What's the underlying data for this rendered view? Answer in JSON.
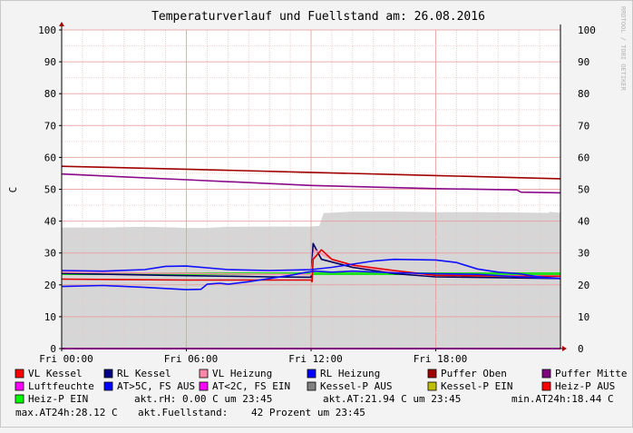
{
  "chart_data": {
    "type": "line",
    "title": "Temperaturverlauf und Fuellstand am: 26.08.2016",
    "ylabel": "C",
    "watermark": "RRDTOOL / TOBI OETIKER",
    "xlim": [
      0,
      24
    ],
    "ylim": [
      0,
      100
    ],
    "y_ticks": [
      0,
      10,
      20,
      30,
      40,
      50,
      60,
      70,
      80,
      90,
      100
    ],
    "x_ticks": [
      {
        "t": 0,
        "label": "Fri 00:00"
      },
      {
        "t": 6,
        "label": "Fri 06:00"
      },
      {
        "t": 12,
        "label": "Fri 12:00"
      },
      {
        "t": 18,
        "label": "Fri 18:00"
      }
    ],
    "grid": true,
    "area": {
      "name": "Fuellstand",
      "color": "#d6d6d6",
      "points": [
        [
          0,
          38
        ],
        [
          2,
          38
        ],
        [
          4,
          38.2
        ],
        [
          5.5,
          38
        ],
        [
          6,
          37.8
        ],
        [
          7,
          37.9
        ],
        [
          8,
          38.2
        ],
        [
          10,
          38.3
        ],
        [
          11.5,
          38.3
        ],
        [
          12,
          38.3
        ],
        [
          12.4,
          38.5
        ],
        [
          12.6,
          42.5
        ],
        [
          14,
          43
        ],
        [
          16,
          43
        ],
        [
          18,
          42.8
        ],
        [
          20,
          42.8
        ],
        [
          22,
          42.7
        ],
        [
          23.4,
          42.6
        ],
        [
          23.5,
          42.9
        ],
        [
          24,
          42.6
        ]
      ]
    },
    "series": [
      {
        "name": "Puffer Oben",
        "color": "#a00000",
        "points": [
          [
            0,
            57.2
          ],
          [
            6,
            56.3
          ],
          [
            12,
            55.3
          ],
          [
            18,
            54.3
          ],
          [
            24,
            53.3
          ]
        ]
      },
      {
        "name": "Puffer Mitte",
        "color": "#8a0a8a",
        "points": [
          [
            0,
            54.8
          ],
          [
            6,
            53
          ],
          [
            12,
            51.2
          ],
          [
            18,
            50.2
          ],
          [
            21.9,
            49.8
          ],
          [
            22.1,
            49.1
          ],
          [
            24,
            48.9
          ]
        ]
      },
      {
        "name": "Heiz-P EIN",
        "color": "#20e020",
        "points": [
          [
            0,
            23.5
          ],
          [
            24,
            23.5
          ]
        ]
      },
      {
        "name": "RL Kessel",
        "color": "#000060",
        "points": [
          [
            0,
            23.6
          ],
          [
            5,
            23
          ],
          [
            10,
            22.5
          ],
          [
            12,
            22.4
          ],
          [
            12.1,
            33
          ],
          [
            12.5,
            28
          ],
          [
            14,
            25.5
          ],
          [
            16,
            23.5
          ],
          [
            18,
            22.5
          ],
          [
            24,
            22
          ]
        ]
      },
      {
        "name": "VL Heizung",
        "color": "#ff90b0",
        "points": [
          [
            0,
            24
          ],
          [
            12,
            23.2
          ],
          [
            12.15,
            31
          ],
          [
            13,
            28
          ],
          [
            14,
            26
          ],
          [
            16,
            24
          ],
          [
            18,
            23
          ],
          [
            24,
            22.8
          ]
        ]
      },
      {
        "name": "VL Kessel",
        "color": "#e00000",
        "points": [
          [
            0,
            21.8
          ],
          [
            6,
            21.5
          ],
          [
            12,
            21.5
          ],
          [
            12.05,
            21
          ],
          [
            12.1,
            28
          ],
          [
            12.5,
            31
          ],
          [
            13,
            28
          ],
          [
            14,
            26.2
          ],
          [
            16,
            24.5
          ],
          [
            18,
            23
          ],
          [
            22,
            22.7
          ],
          [
            24,
            22.7
          ]
        ]
      },
      {
        "name": "Heizung",
        "color": "#1010ff",
        "points": [
          [
            0,
            24.5
          ],
          [
            2,
            24.3
          ],
          [
            4,
            24.8
          ],
          [
            5,
            25.8
          ],
          [
            6,
            25.9
          ],
          [
            8,
            24.8
          ],
          [
            10,
            24.5
          ],
          [
            11.5,
            24.7
          ],
          [
            12,
            24.8
          ],
          [
            13,
            25.5
          ],
          [
            14,
            26.5
          ],
          [
            15,
            27.5
          ],
          [
            16,
            28
          ],
          [
            18,
            27.8
          ],
          [
            19,
            27
          ],
          [
            20,
            25
          ],
          [
            21,
            24
          ],
          [
            22,
            23.5
          ],
          [
            23,
            22.5
          ],
          [
            24,
            22
          ]
        ]
      },
      {
        "name": "RL Heizung",
        "color": "#1010ff",
        "points": [
          [
            0,
            19.5
          ],
          [
            2,
            19.8
          ],
          [
            4,
            19.2
          ],
          [
            6,
            18.5
          ],
          [
            6.7,
            18.6
          ],
          [
            7,
            20.2
          ],
          [
            7.6,
            20.5
          ],
          [
            8,
            20.2
          ],
          [
            9,
            21
          ],
          [
            10,
            22
          ],
          [
            11,
            23
          ],
          [
            11.8,
            24
          ],
          [
            12.2,
            24.3
          ],
          [
            13,
            24
          ],
          [
            14,
            24.3
          ],
          [
            16,
            23.8
          ],
          [
            18,
            23.5
          ],
          [
            20,
            23.3
          ],
          [
            22,
            22.5
          ],
          [
            24,
            22
          ]
        ]
      },
      {
        "name": "Luftfeuchte",
        "color": "#ff00ff",
        "points": [
          [
            0,
            0
          ],
          [
            24,
            0
          ]
        ]
      }
    ]
  },
  "legend": {
    "rows": [
      [
        {
          "label": "VL Kessel",
          "color": "#ff0000"
        },
        {
          "label": "RL Kessel",
          "color": "#000080"
        },
        {
          "label": "VL Heizung",
          "color": "#ff88aa"
        },
        {
          "label": "RL Heizung",
          "color": "#0000ff"
        },
        {
          "label": "Puffer Oben",
          "color": "#a00000"
        },
        {
          "label": "Puffer Mitte",
          "color": "#800080"
        }
      ],
      [
        {
          "label": "Luftfeuchte",
          "color": "#ff00ff"
        },
        {
          "label": "AT>5C, FS AUS",
          "color": "#0000ff"
        },
        {
          "label": "AT<2C, FS EIN",
          "color": "#ff00ff"
        },
        {
          "label": "Kessel-P AUS",
          "color": "#808080"
        },
        {
          "label": "Kessel-P EIN",
          "color": "#c0c000"
        },
        {
          "label": "Heiz-P AUS",
          "color": "#ff0000"
        }
      ]
    ],
    "heizp_ein": {
      "label": "Heiz-P EIN",
      "color": "#00ff00"
    }
  },
  "stats": {
    "rh": "akt.rH: 0.00 C um 23:45",
    "at": "akt.AT:21.94 C um 23:45",
    "min": "min.AT24h:18.44 C",
    "max": "max.AT24h:28.12 C",
    "fuell_label": "akt.Fuellstand:",
    "fuell_value": "42 Prozent um 23:45"
  }
}
